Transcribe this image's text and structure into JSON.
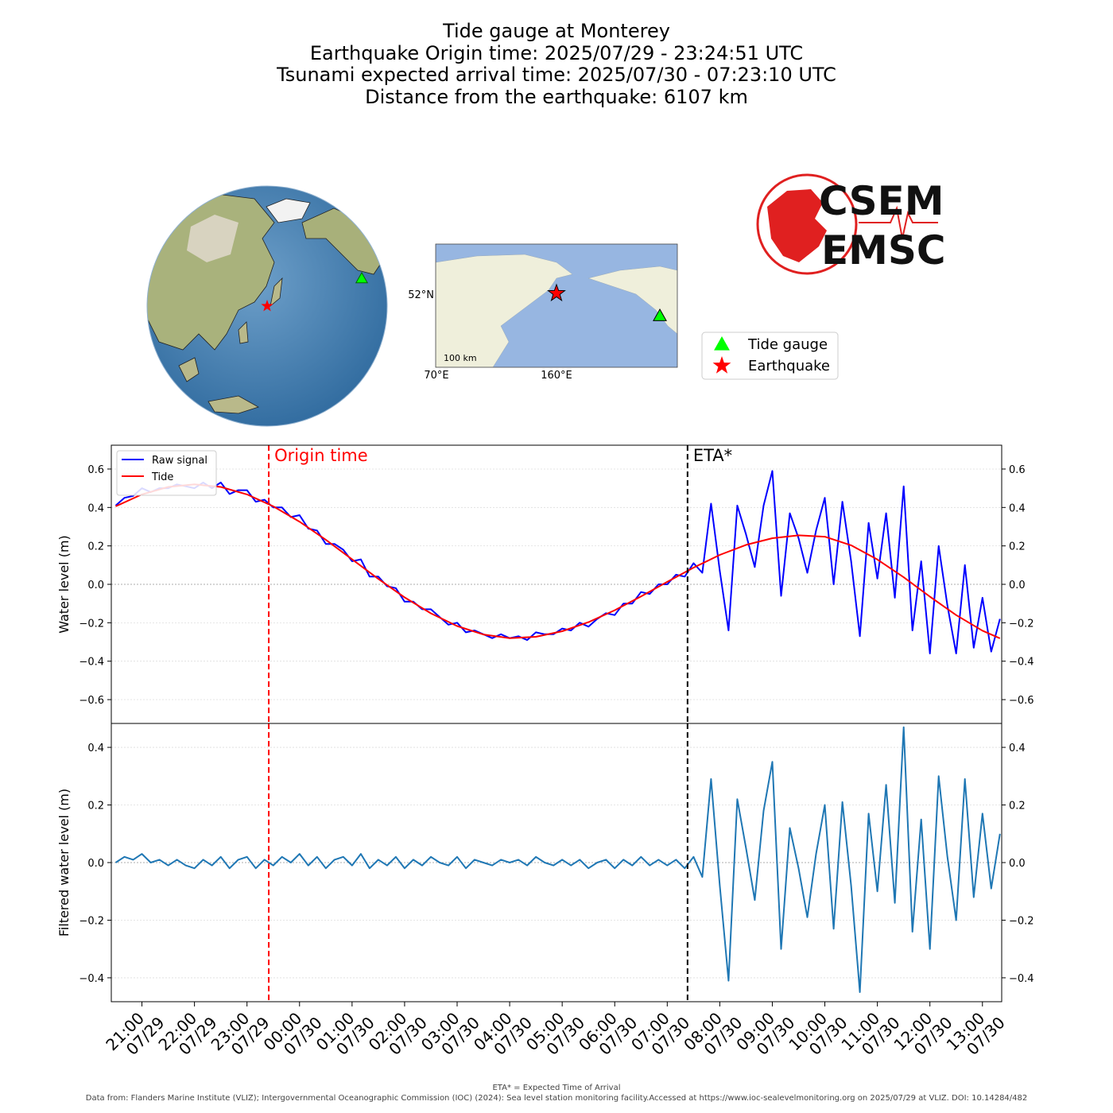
{
  "title": [
    "Tide gauge at Monterey",
    "Earthquake Origin time: 2025/07/29 - 23:24:51 UTC",
    "Tsunami expected arrival time: 2025/07/30 - 07:23:10 UTC",
    "Distance from the earthquake: 6107 km"
  ],
  "map": {
    "lat_label": "52°N",
    "lon_labels": [
      "70°E",
      "160°E"
    ],
    "scale": "100 km",
    "legend": [
      {
        "name": "Tide gauge",
        "color": "#00ff00"
      },
      {
        "name": "Earthquake",
        "color": "#ff0000"
      }
    ]
  },
  "logo": [
    "CSEM",
    "EMSC"
  ],
  "chart_data": [
    {
      "type": "line",
      "ylabel": "Water level (m)",
      "grid": true,
      "legend": "upper left",
      "xlim": [
        "07/29 20:25",
        "07/30 13:22"
      ],
      "ylim": [
        -0.724,
        0.724
      ],
      "yticks": [
        {
          "value": -0.6,
          "label": "−0.6"
        },
        {
          "value": -0.4,
          "label": "−0.4"
        },
        {
          "value": -0.2,
          "label": "−0.2"
        },
        {
          "value": 0,
          "label": "0.0"
        },
        {
          "value": 0.2,
          "label": "0.2"
        },
        {
          "value": 0.4,
          "label": "0.4"
        },
        {
          "value": 0.6,
          "label": "0.6"
        }
      ],
      "hlines": [
        0
      ],
      "vlines": [
        {
          "x": "07/29 23:24:51",
          "label": "Origin time",
          "color": "#ff0000"
        },
        {
          "x": "07/30 07:23:10",
          "label": "ETA*",
          "color": "#000000"
        }
      ],
      "series": [
        {
          "name": "Raw signal",
          "color": "#0000ff",
          "x": [
            "07/29 20:30",
            "07/29 20:40",
            "07/29 20:50",
            "07/29 21:00",
            "07/29 21:10",
            "07/29 21:20",
            "07/29 21:30",
            "07/29 21:40",
            "07/29 21:50",
            "07/29 22:00",
            "07/29 22:10",
            "07/29 22:20",
            "07/29 22:30",
            "07/29 22:40",
            "07/29 22:50",
            "07/29 23:00",
            "07/29 23:10",
            "07/29 23:20",
            "07/29 23:30",
            "07/29 23:40",
            "07/29 23:50",
            "07/30 00:00",
            "07/30 00:10",
            "07/30 00:20",
            "07/30 00:30",
            "07/30 00:40",
            "07/30 00:50",
            "07/30 01:00",
            "07/30 01:10",
            "07/30 01:20",
            "07/30 01:30",
            "07/30 01:40",
            "07/30 01:50",
            "07/30 02:00",
            "07/30 02:10",
            "07/30 02:20",
            "07/30 02:30",
            "07/30 02:40",
            "07/30 02:50",
            "07/30 03:00",
            "07/30 03:10",
            "07/30 03:20",
            "07/30 03:30",
            "07/30 03:40",
            "07/30 03:50",
            "07/30 04:00",
            "07/30 04:10",
            "07/30 04:20",
            "07/30 04:30",
            "07/30 04:40",
            "07/30 04:50",
            "07/30 05:00",
            "07/30 05:10",
            "07/30 05:20",
            "07/30 05:30",
            "07/30 05:40",
            "07/30 05:50",
            "07/30 06:00",
            "07/30 06:10",
            "07/30 06:20",
            "07/30 06:30",
            "07/30 06:40",
            "07/30 06:50",
            "07/30 07:00",
            "07/30 07:10",
            "07/30 07:20",
            "07/30 07:30",
            "07/30 07:40",
            "07/30 07:50",
            "07/30 08:00",
            "07/30 08:10",
            "07/30 08:20",
            "07/30 08:30",
            "07/30 08:40",
            "07/30 08:50",
            "07/30 09:00",
            "07/30 09:10",
            "07/30 09:20",
            "07/30 09:30",
            "07/30 09:40",
            "07/30 09:50",
            "07/30 10:00",
            "07/30 10:10",
            "07/30 10:20",
            "07/30 10:30",
            "07/30 10:40",
            "07/30 10:50",
            "07/30 11:00",
            "07/30 11:10",
            "07/30 11:20",
            "07/30 11:30",
            "07/30 11:40",
            "07/30 11:50",
            "07/30 12:00",
            "07/30 12:10",
            "07/30 12:20",
            "07/30 12:30",
            "07/30 12:40",
            "07/30 12:50",
            "07/30 13:00",
            "07/30 13:10",
            "07/30 13:20"
          ],
          "values": [
            0.41,
            0.45,
            0.46,
            0.5,
            0.48,
            0.5,
            0.5,
            0.52,
            0.51,
            0.5,
            0.53,
            0.5,
            0.53,
            0.47,
            0.49,
            0.49,
            0.43,
            0.44,
            0.4,
            0.4,
            0.35,
            0.36,
            0.29,
            0.28,
            0.21,
            0.21,
            0.18,
            0.12,
            0.13,
            0.04,
            0.04,
            -0.01,
            -0.02,
            -0.09,
            -0.09,
            -0.13,
            -0.13,
            -0.17,
            -0.21,
            -0.2,
            -0.25,
            -0.24,
            -0.26,
            -0.28,
            -0.26,
            -0.28,
            -0.27,
            -0.29,
            -0.25,
            -0.26,
            -0.26,
            -0.23,
            -0.24,
            -0.2,
            -0.22,
            -0.18,
            -0.15,
            -0.16,
            -0.1,
            -0.1,
            -0.04,
            -0.05,
            0.0,
            0.0,
            0.05,
            0.04,
            0.11,
            0.06,
            0.42,
            0.07,
            -0.24,
            0.41,
            0.26,
            0.09,
            0.41,
            0.59,
            -0.06,
            0.37,
            0.24,
            0.06,
            0.28,
            0.45,
            0.0,
            0.43,
            0.12,
            -0.27,
            0.32,
            0.03,
            0.37,
            -0.07,
            0.51,
            -0.24,
            0.12,
            -0.36,
            0.2,
            -0.11,
            -0.36,
            0.1,
            -0.33,
            -0.07,
            -0.35,
            -0.18
          ]
        },
        {
          "name": "Tide",
          "color": "#ff0000",
          "x": [
            "07/29 20:30",
            "07/29 21:00",
            "07/29 21:30",
            "07/29 22:00",
            "07/29 22:30",
            "07/29 23:00",
            "07/29 23:30",
            "07/30 00:00",
            "07/30 00:30",
            "07/30 01:00",
            "07/30 01:30",
            "07/30 02:00",
            "07/30 02:30",
            "07/30 03:00",
            "07/30 03:30",
            "07/30 04:00",
            "07/30 04:30",
            "07/30 05:00",
            "07/30 05:30",
            "07/30 06:00",
            "07/30 06:30",
            "07/30 07:00",
            "07/30 07:30",
            "07/30 08:00",
            "07/30 08:30",
            "07/30 09:00",
            "07/30 09:30",
            "07/30 10:00",
            "07/30 10:30",
            "07/30 11:00",
            "07/30 11:30",
            "07/30 12:00",
            "07/30 12:30",
            "07/30 13:00",
            "07/30 13:20"
          ],
          "values": [
            0.406,
            0.468,
            0.507,
            0.52,
            0.507,
            0.468,
            0.406,
            0.326,
            0.232,
            0.13,
            0.028,
            -0.068,
            -0.151,
            -0.217,
            -0.261,
            -0.28,
            -0.273,
            -0.244,
            -0.197,
            -0.135,
            -0.063,
            0.013,
            0.087,
            0.153,
            0.205,
            0.24,
            0.255,
            0.248,
            0.203,
            0.129,
            0.037,
            -0.064,
            -0.16,
            -0.241,
            -0.281
          ]
        }
      ]
    },
    {
      "type": "line",
      "ylabel": "Filtered water level (m)",
      "grid": true,
      "xlim": [
        "07/29 20:25",
        "07/30 13:22"
      ],
      "ylim": [
        -0.483,
        0.483
      ],
      "yticks": [
        {
          "value": -0.4,
          "label": "−0.4"
        },
        {
          "value": -0.2,
          "label": "−0.2"
        },
        {
          "value": 0,
          "label": "0.0"
        },
        {
          "value": 0.2,
          "label": "0.2"
        },
        {
          "value": 0.4,
          "label": "0.4"
        }
      ],
      "hlines": [
        0
      ],
      "vlines": [
        {
          "x": "07/29 23:24:51",
          "color": "#ff0000"
        },
        {
          "x": "07/30 07:23:10",
          "color": "#000000"
        }
      ],
      "xticks": [
        {
          "value": "07/29 21:00",
          "label": [
            "21:00",
            "07/29"
          ]
        },
        {
          "value": "07/29 22:00",
          "label": [
            "22:00",
            "07/29"
          ]
        },
        {
          "value": "07/29 23:00",
          "label": [
            "23:00",
            "07/29"
          ]
        },
        {
          "value": "07/30 00:00",
          "label": [
            "00:00",
            "07/30"
          ]
        },
        {
          "value": "07/30 01:00",
          "label": [
            "01:00",
            "07/30"
          ]
        },
        {
          "value": "07/30 02:00",
          "label": [
            "02:00",
            "07/30"
          ]
        },
        {
          "value": "07/30 03:00",
          "label": [
            "03:00",
            "07/30"
          ]
        },
        {
          "value": "07/30 04:00",
          "label": [
            "04:00",
            "07/30"
          ]
        },
        {
          "value": "07/30 05:00",
          "label": [
            "05:00",
            "07/30"
          ]
        },
        {
          "value": "07/30 06:00",
          "label": [
            "06:00",
            "07/30"
          ]
        },
        {
          "value": "07/30 07:00",
          "label": [
            "07:00",
            "07/30"
          ]
        },
        {
          "value": "07/30 08:00",
          "label": [
            "08:00",
            "07/30"
          ]
        },
        {
          "value": "07/30 09:00",
          "label": [
            "09:00",
            "07/30"
          ]
        },
        {
          "value": "07/30 10:00",
          "label": [
            "10:00",
            "07/30"
          ]
        },
        {
          "value": "07/30 11:00",
          "label": [
            "11:00",
            "07/30"
          ]
        },
        {
          "value": "07/30 12:00",
          "label": [
            "12:00",
            "07/30"
          ]
        },
        {
          "value": "07/30 13:00",
          "label": [
            "13:00",
            "07/30"
          ]
        }
      ],
      "series": [
        {
          "color": "#1f77b4",
          "x": [
            "07/29 20:30",
            "07/29 20:40",
            "07/29 20:50",
            "07/29 21:00",
            "07/29 21:10",
            "07/29 21:20",
            "07/29 21:30",
            "07/29 21:40",
            "07/29 21:50",
            "07/29 22:00",
            "07/29 22:10",
            "07/29 22:20",
            "07/29 22:30",
            "07/29 22:40",
            "07/29 22:50",
            "07/29 23:00",
            "07/29 23:10",
            "07/29 23:20",
            "07/29 23:30",
            "07/29 23:40",
            "07/29 23:50",
            "07/30 00:00",
            "07/30 00:10",
            "07/30 00:20",
            "07/30 00:30",
            "07/30 00:40",
            "07/30 00:50",
            "07/30 01:00",
            "07/30 01:10",
            "07/30 01:20",
            "07/30 01:30",
            "07/30 01:40",
            "07/30 01:50",
            "07/30 02:00",
            "07/30 02:10",
            "07/30 02:20",
            "07/30 02:30",
            "07/30 02:40",
            "07/30 02:50",
            "07/30 03:00",
            "07/30 03:10",
            "07/30 03:20",
            "07/30 03:30",
            "07/30 03:40",
            "07/30 03:50",
            "07/30 04:00",
            "07/30 04:10",
            "07/30 04:20",
            "07/30 04:30",
            "07/30 04:40",
            "07/30 04:50",
            "07/30 05:00",
            "07/30 05:10",
            "07/30 05:20",
            "07/30 05:30",
            "07/30 05:40",
            "07/30 05:50",
            "07/30 06:00",
            "07/30 06:10",
            "07/30 06:20",
            "07/30 06:30",
            "07/30 06:40",
            "07/30 06:50",
            "07/30 07:00",
            "07/30 07:10",
            "07/30 07:20",
            "07/30 07:30",
            "07/30 07:40",
            "07/30 07:50",
            "07/30 08:00",
            "07/30 08:10",
            "07/30 08:20",
            "07/30 08:30",
            "07/30 08:40",
            "07/30 08:50",
            "07/30 09:00",
            "07/30 09:10",
            "07/30 09:20",
            "07/30 09:30",
            "07/30 09:40",
            "07/30 09:50",
            "07/30 10:00",
            "07/30 10:10",
            "07/30 10:20",
            "07/30 10:30",
            "07/30 10:40",
            "07/30 10:50",
            "07/30 11:00",
            "07/30 11:10",
            "07/30 11:20",
            "07/30 11:30",
            "07/30 11:40",
            "07/30 11:50",
            "07/30 12:00",
            "07/30 12:10",
            "07/30 12:20",
            "07/30 12:30",
            "07/30 12:40",
            "07/30 12:50",
            "07/30 13:00",
            "07/30 13:10",
            "07/30 13:20"
          ],
          "values": [
            0,
            0.02,
            0.01,
            0.03,
            0,
            0.01,
            -0.01,
            0.01,
            -0.01,
            -0.02,
            0.01,
            -0.01,
            0.02,
            -0.02,
            0.01,
            0.02,
            -0.02,
            0.01,
            -0.01,
            0.02,
            0,
            0.03,
            -0.01,
            0.02,
            -0.02,
            0.01,
            0.02,
            -0.01,
            0.03,
            -0.02,
            0.01,
            -0.01,
            0.02,
            -0.02,
            0.01,
            -0.01,
            0.02,
            0,
            -0.01,
            0.02,
            -0.02,
            0.01,
            0,
            -0.01,
            0.01,
            0,
            0.01,
            -0.01,
            0.02,
            0,
            -0.01,
            0.01,
            -0.01,
            0.01,
            -0.02,
            0,
            0.01,
            -0.02,
            0.01,
            -0.01,
            0.02,
            -0.01,
            0.01,
            -0.01,
            0.01,
            -0.02,
            0.02,
            -0.05,
            0.29,
            -0.08,
            -0.41,
            0.22,
            0.05,
            -0.13,
            0.18,
            0.35,
            -0.3,
            0.12,
            -0.02,
            -0.19,
            0.03,
            0.2,
            -0.23,
            0.21,
            -0.08,
            -0.45,
            0.17,
            -0.1,
            0.27,
            -0.14,
            0.47,
            -0.24,
            0.15,
            -0.3,
            0.3,
            0.02,
            -0.2,
            0.29,
            -0.12,
            0.17,
            -0.09,
            0.1
          ]
        }
      ]
    }
  ],
  "footer": [
    "ETA* = Expected Time of Arrival",
    "Data from: Flanders Marine Institute (VLIZ); Intergovernmental Oceanographic Commission (IOC) (2024): Sea level station monitoring facility.Accessed at https://www.ioc-sealevelmonitoring.org on 2025/07/29 at VLIZ. DOI: 10.14284/482"
  ]
}
